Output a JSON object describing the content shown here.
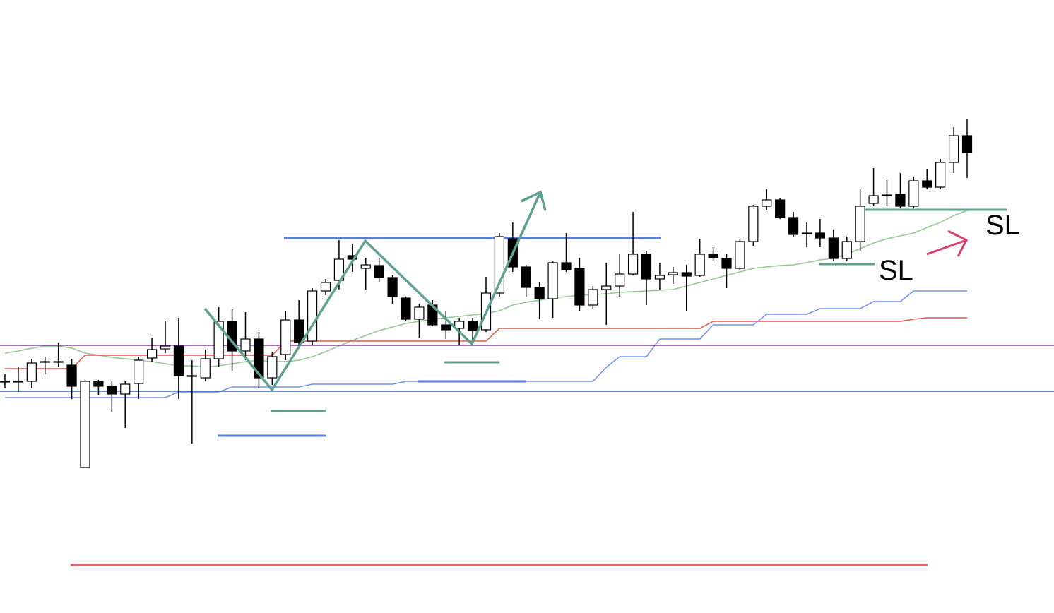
{
  "chart_data": {
    "type": "candlestick",
    "categories": [
      null,
      null,
      null,
      null,
      null,
      null,
      null,
      null,
      null,
      null,
      null,
      null,
      null,
      null,
      null,
      null,
      null,
      null,
      null,
      null,
      null,
      null,
      null,
      null,
      null,
      null,
      null,
      null,
      null,
      null,
      null,
      null,
      null,
      null,
      null,
      null,
      null,
      null,
      null,
      null,
      null,
      null,
      null,
      null,
      null,
      null,
      null,
      null,
      null,
      null,
      null,
      null,
      null,
      null,
      null,
      null,
      null,
      null,
      null,
      null,
      null,
      null,
      null,
      null,
      null,
      null,
      null,
      null,
      null,
      null,
      null,
      null,
      null
    ],
    "open": [
      328,
      328,
      328,
      356,
      356,
      351,
      206,
      328,
      321,
      310,
      325,
      361,
      374,
      378,
      336,
      333,
      360,
      413,
      371,
      388,
      333,
      366,
      415,
      385,
      456,
      471,
      506,
      488,
      492,
      475,
      446,
      416,
      436,
      408,
      403,
      413,
      401,
      453,
      530,
      490,
      461,
      445,
      496,
      488,
      436,
      458,
      463,
      480,
      508,
      473,
      479,
      482,
      478,
      508,
      502,
      488,
      526,
      576,
      585,
      560,
      538,
      538,
      531,
      502,
      526,
      580,
      592,
      593,
      576,
      612,
      603,
      638,
      676
    ],
    "high": [
      338,
      348,
      360,
      363,
      383,
      360,
      330,
      330,
      328,
      328,
      363,
      390,
      413,
      418,
      358,
      373,
      433,
      430,
      426,
      398,
      370,
      428,
      443,
      460,
      473,
      528,
      523,
      503,
      503,
      478,
      448,
      438,
      443,
      428,
      418,
      418,
      476,
      538,
      553,
      493,
      468,
      498,
      538,
      503,
      463,
      496,
      508,
      568,
      513,
      496,
      490,
      493,
      530,
      518,
      508,
      530,
      578,
      600,
      588,
      568,
      553,
      558,
      543,
      533,
      600,
      630,
      613,
      623,
      618,
      628,
      643,
      688,
      700
    ],
    "low": [
      318,
      313,
      318,
      338,
      348,
      303,
      206,
      308,
      285,
      262,
      303,
      356,
      368,
      303,
      240,
      328,
      348,
      343,
      358,
      318,
      323,
      358,
      378,
      380,
      450,
      458,
      483,
      458,
      468,
      438,
      413,
      390,
      406,
      388,
      380,
      383,
      398,
      448,
      483,
      448,
      416,
      418,
      483,
      428,
      431,
      408,
      448,
      478,
      436,
      458,
      466,
      428,
      476,
      498,
      460,
      486,
      520,
      571,
      558,
      533,
      518,
      518,
      498,
      498,
      513,
      576,
      576,
      573,
      573,
      600,
      600,
      623,
      616
    ],
    "close": [
      328,
      328,
      354,
      356,
      356,
      321,
      328,
      321,
      310,
      324,
      358,
      373,
      378,
      336,
      336,
      360,
      413,
      371,
      388,
      333,
      363,
      415,
      383,
      456,
      468,
      501,
      501,
      493,
      475,
      448,
      416,
      433,
      408,
      401,
      413,
      400,
      453,
      533,
      490,
      461,
      445,
      496,
      486,
      436,
      458,
      463,
      480,
      508,
      473,
      478,
      482,
      477,
      508,
      503,
      488,
      526,
      576,
      585,
      560,
      536,
      538,
      531,
      502,
      526,
      576,
      591,
      592,
      576,
      612,
      603,
      638,
      676,
      652
    ],
    "up_color": "#ffffff",
    "down_color": "#000000",
    "series": [
      {
        "color": "#90c890",
        "values": [
          368,
          371,
          375,
          378,
          378,
          375,
          368,
          365,
          362,
          360,
          358,
          356,
          353,
          350,
          350,
          348,
          350,
          353,
          356,
          358,
          356,
          356,
          358,
          363,
          370,
          378,
          386,
          393,
          400,
          405,
          410,
          413,
          416,
          418,
          420,
          422,
          424,
          428,
          436,
          440,
          443,
          446,
          448,
          450,
          451,
          452,
          454,
          455,
          456,
          457,
          458,
          463,
          468,
          473,
          478,
          483,
          488,
          490,
          492,
          493,
          496,
          500,
          502,
          508,
          516,
          524,
          530,
          534,
          538,
          546,
          553,
          563,
          570
        ]
      },
      {
        "color": "#e0574f",
        "values": [
          346,
          346,
          346,
          346,
          346,
          346,
          365,
          365,
          365,
          365,
          365,
          365,
          365,
          365,
          365,
          365,
          365,
          365,
          365,
          365,
          365,
          385,
          385,
          385,
          385,
          385,
          385,
          385,
          385,
          385,
          385,
          385,
          385,
          385,
          385,
          385,
          385,
          403,
          403,
          403,
          403,
          403,
          403,
          403,
          403,
          403,
          403,
          403,
          403,
          403,
          403,
          403,
          403,
          413,
          413,
          413,
          413,
          413,
          413,
          413,
          413,
          413,
          413,
          413,
          413,
          413,
          413,
          413,
          416,
          418,
          418,
          418,
          418
        ]
      },
      {
        "color": "#7090f0",
        "values": [
          305,
          305,
          305,
          305,
          305,
          305,
          305,
          305,
          305,
          305,
          305,
          305,
          305,
          313,
          313,
          313,
          313,
          320,
          320,
          320,
          320,
          320,
          320,
          324,
          324,
          324,
          324,
          324,
          324,
          324,
          328,
          328,
          328,
          328,
          328,
          328,
          328,
          328,
          328,
          328,
          328,
          328,
          328,
          328,
          328,
          348,
          363,
          363,
          363,
          388,
          388,
          388,
          388,
          408,
          408,
          408,
          408,
          423,
          423,
          423,
          423,
          431,
          431,
          431,
          431,
          441,
          441,
          441,
          456,
          456,
          456,
          456,
          456
        ]
      }
    ],
    "ylim": [
      0,
      868
    ],
    "annotations": [
      "SL",
      "SL"
    ]
  }
}
